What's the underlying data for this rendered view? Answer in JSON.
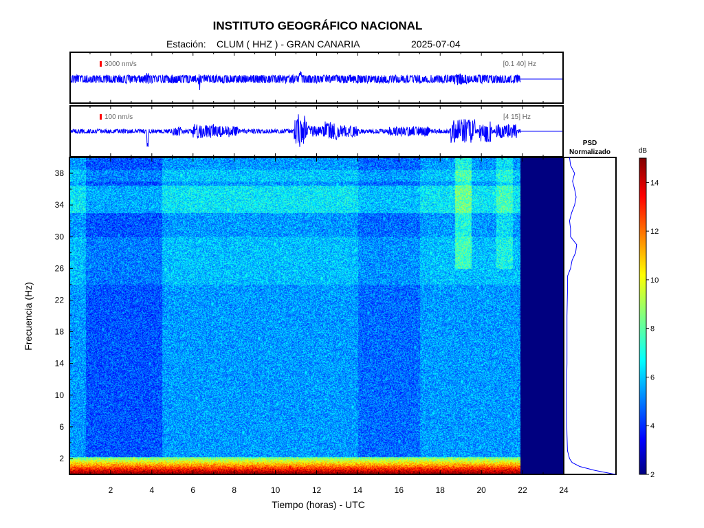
{
  "header": {
    "title": "INSTITUTO GEOGRÁFICO NACIONAL",
    "station_label": "Estación:",
    "station_value": "CLUM ( HHZ ) - GRAN CANARIA",
    "date": "2025-07-04"
  },
  "traces": [
    {
      "scale_label": "3000 nm/s",
      "filter_label": "[0.1 40] Hz"
    },
    {
      "scale_label": "100 nm/s",
      "filter_label": "[4 15] Hz"
    }
  ],
  "psd": {
    "title_line1": "PSD",
    "title_line2": "Normalizado"
  },
  "colorbar": {
    "unit": "dB",
    "ticks": [
      2,
      4,
      6,
      8,
      10,
      12,
      14
    ],
    "range": [
      2,
      15
    ]
  },
  "colors": {
    "trace": "#0000ff",
    "frame": "#000000",
    "nodata": "#000080"
  },
  "chart_data": {
    "type": "heatmap",
    "xlabel": "Tiempo (horas) - UTC",
    "ylabel": "Frecuencia  (Hz)",
    "xlim": [
      0,
      24
    ],
    "ylim": [
      0,
      40
    ],
    "xticks": [
      2,
      4,
      6,
      8,
      10,
      12,
      14,
      16,
      18,
      20,
      22,
      24
    ],
    "yticks": [
      2,
      6,
      10,
      14,
      18,
      22,
      26,
      30,
      34,
      38
    ],
    "data_end_hour": 21.9,
    "psd_profile": {
      "frequency": [
        0,
        0.5,
        1,
        1.5,
        2,
        3,
        5,
        8,
        11,
        14,
        17,
        20,
        23,
        25,
        26,
        27,
        28,
        29,
        30,
        31,
        32,
        33,
        34,
        35,
        36,
        37,
        38,
        39,
        40
      ],
      "normalized": [
        1.0,
        0.6,
        0.3,
        0.15,
        0.1,
        0.06,
        0.05,
        0.04,
        0.04,
        0.05,
        0.05,
        0.05,
        0.06,
        0.06,
        0.12,
        0.15,
        0.22,
        0.24,
        0.12,
        0.12,
        0.1,
        0.14,
        0.2,
        0.23,
        0.2,
        0.16,
        0.2,
        0.12,
        0.1
      ]
    }
  }
}
